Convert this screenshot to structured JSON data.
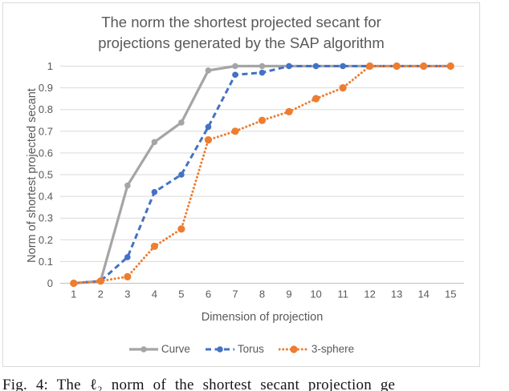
{
  "figure": {
    "caption": "Fig. 4: The ℓ₂ norm of the shortest secant projection ge"
  },
  "chart_data": {
    "type": "line",
    "title": "The norm the shortest projected secant for\nprojections generated by the SAP algorithm",
    "xlabel": "Dimension of projection",
    "ylabel": "Norm of shortest projected secant",
    "x": [
      1,
      2,
      3,
      4,
      5,
      6,
      7,
      8,
      9,
      10,
      11,
      12,
      13,
      14,
      15
    ],
    "xtick_labels": [
      "1",
      "2",
      "3",
      "4",
      "5",
      "6",
      "7",
      "8",
      "9",
      "10",
      "11",
      "12",
      "13",
      "14",
      "15"
    ],
    "ylim": [
      0,
      1
    ],
    "ytick_labels": [
      "0",
      "0.1",
      "0.2",
      "0.3",
      "0.4",
      "0.5",
      "0.6",
      "0.7",
      "0.8",
      "0.9",
      "1"
    ],
    "grid": true,
    "legend_position": "bottom",
    "colors": {
      "grid": "#d9d9d9",
      "axis": "#bfbfbf",
      "text": "#595959",
      "panel_border": "#d9d9d9"
    },
    "series": [
      {
        "name": "Curve",
        "color": "#a5a5a5",
        "line_style": "solid",
        "marker": "circle",
        "values": [
          0,
          0.01,
          0.45,
          0.65,
          0.74,
          0.98,
          1,
          1,
          1,
          1,
          1,
          1,
          1,
          1,
          1
        ]
      },
      {
        "name": "Torus",
        "color": "#4472c4",
        "line_style": "dashed",
        "marker": "circle",
        "values": [
          0,
          0.01,
          0.12,
          0.42,
          0.5,
          0.72,
          0.96,
          0.97,
          1,
          1,
          1,
          1,
          1,
          1,
          1
        ]
      },
      {
        "name": "3-sphere",
        "color": "#ed7d31",
        "line_style": "dotted",
        "marker": "circle",
        "values": [
          0,
          0.01,
          0.03,
          0.17,
          0.25,
          0.66,
          0.7,
          0.75,
          0.79,
          0.85,
          0.9,
          1,
          1,
          1,
          1
        ]
      }
    ]
  }
}
